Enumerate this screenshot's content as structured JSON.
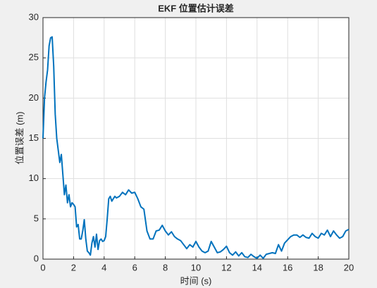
{
  "chart_data": {
    "type": "line",
    "title": "EKF 位置估计误差",
    "xlabel": "时间 (s)",
    "ylabel": "位置误差 (m)",
    "x": [
      0,
      0.1,
      0.2,
      0.3,
      0.4,
      0.5,
      0.6,
      0.7,
      0.8,
      0.9,
      1.0,
      1.1,
      1.2,
      1.3,
      1.4,
      1.5,
      1.6,
      1.7,
      1.8,
      1.9,
      2.0,
      2.1,
      2.2,
      2.3,
      2.4,
      2.5,
      2.6,
      2.7,
      2.8,
      2.9,
      3.0,
      3.1,
      3.2,
      3.3,
      3.4,
      3.5,
      3.6,
      3.7,
      3.8,
      3.9,
      4.0,
      4.1,
      4.2,
      4.3,
      4.4,
      4.5,
      4.6,
      4.7,
      4.8,
      5.0,
      5.2,
      5.4,
      5.6,
      5.8,
      6.0,
      6.2,
      6.4,
      6.6,
      6.8,
      7.0,
      7.2,
      7.4,
      7.6,
      7.8,
      8.0,
      8.2,
      8.4,
      8.6,
      8.8,
      9.0,
      9.2,
      9.4,
      9.6,
      9.8,
      10.0,
      10.2,
      10.4,
      10.6,
      10.8,
      11.0,
      11.2,
      11.4,
      11.6,
      11.8,
      12.0,
      12.2,
      12.4,
      12.6,
      12.8,
      13.0,
      13.2,
      13.4,
      13.6,
      13.8,
      14.0,
      14.2,
      14.4,
      14.6,
      14.8,
      15.0,
      15.2,
      15.4,
      15.6,
      15.8,
      16.0,
      16.2,
      16.4,
      16.6,
      16.8,
      17.0,
      17.2,
      17.4,
      17.6,
      17.8,
      18.0,
      18.2,
      18.4,
      18.6,
      18.8,
      19.0,
      19.2,
      19.4,
      19.6,
      19.8,
      20.0
    ],
    "series": [
      {
        "color": "#0072bd",
        "values": [
          15,
          20,
          22,
          23.5,
          26.5,
          27.5,
          27.6,
          24,
          18,
          15,
          13.5,
          12,
          13,
          10.5,
          8,
          9.2,
          7,
          8,
          6.5,
          7,
          6.8,
          6.5,
          4,
          4.3,
          2.5,
          2.5,
          3.5,
          4.9,
          2.5,
          1,
          0.8,
          0.5,
          2,
          2.8,
          1.5,
          3.1,
          1.2,
          2.3,
          2.5,
          2.2,
          2.3,
          2.8,
          5,
          7.5,
          7.8,
          7.2,
          7.5,
          7.8,
          7.6,
          7.8,
          8.3,
          8,
          8.6,
          8.2,
          8.3,
          7.5,
          6.5,
          6.2,
          3.5,
          2.5,
          2.5,
          3.5,
          3.6,
          4.2,
          3.5,
          3,
          3.4,
          2.8,
          2.5,
          2.3,
          1.8,
          1.3,
          1.8,
          1.5,
          2.2,
          1.5,
          1,
          0.8,
          1,
          2.2,
          1.5,
          0.8,
          0.9,
          1.2,
          1.6,
          0.8,
          0.5,
          0.9,
          0.4,
          0.8,
          0.3,
          0.2,
          0.6,
          0.3,
          0.1,
          0.5,
          0.1,
          0.6,
          0.7,
          0.8,
          0.7,
          1.8,
          1,
          2,
          2.4,
          2.8,
          3,
          3,
          2.7,
          3,
          2.7,
          2.6,
          3.2,
          2.8,
          2.6,
          3.2,
          3,
          3.6,
          2.8,
          3.5,
          3,
          2.6,
          2.8,
          3.5,
          3.7
        ]
      }
    ],
    "xlim": [
      0,
      20
    ],
    "xticks": [
      0,
      2,
      4,
      6,
      8,
      10,
      12,
      14,
      16,
      18,
      20
    ],
    "ylim": [
      0,
      30
    ],
    "yticks": [
      0,
      5,
      10,
      15,
      20,
      25,
      30
    ],
    "grid": true
  }
}
